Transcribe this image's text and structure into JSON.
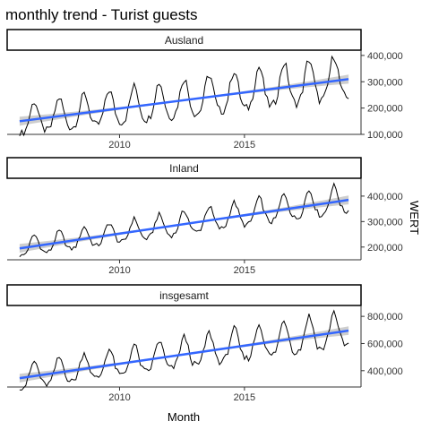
{
  "chart_data": {
    "type": "line",
    "title": "monthly trend - Turist guests",
    "xlabel": "Month",
    "ylabel": "WERT",
    "x_range": [
      "2006-01",
      "2019-03"
    ],
    "x_ticks": [
      {
        "value": "2010-01",
        "label": "2010"
      },
      {
        "value": "2015-01",
        "label": "2015"
      }
    ],
    "grid": false,
    "smooth_color": "#3366FF",
    "ribbon_color": "#bdbdbd",
    "line_color": "#000000",
    "panels": [
      {
        "name": "Ausland",
        "y_range": [
          100000,
          420000
        ],
        "y_ticks": [
          {
            "value": 100000,
            "label": "100,000"
          },
          {
            "value": 200000,
            "label": "200,000"
          },
          {
            "value": 300000,
            "label": "300,000"
          },
          {
            "value": 400000,
            "label": "400,000"
          }
        ],
        "trend": {
          "start": 150000,
          "end": 310000
        },
        "seasonal_amplitude": 70000,
        "peak_month": 8
      },
      {
        "name": "Inland",
        "y_range": [
          150000,
          470000
        ],
        "y_ticks": [
          {
            "value": 200000,
            "label": "200,000"
          },
          {
            "value": 300000,
            "label": "300,000"
          },
          {
            "value": 400000,
            "label": "400,000"
          }
        ],
        "trend": {
          "start": 195000,
          "end": 385000
        },
        "seasonal_amplitude": 45000,
        "peak_month": 8
      },
      {
        "name": "insgesamt",
        "y_range": [
          280000,
          880000
        ],
        "y_ticks": [
          {
            "value": 400000,
            "label": "400,000"
          },
          {
            "value": 600000,
            "label": "600,000"
          },
          {
            "value": 800000,
            "label": "800,000"
          }
        ],
        "trend": {
          "start": 345000,
          "end": 695000
        },
        "seasonal_amplitude": 110000,
        "peak_month": 8
      }
    ]
  }
}
